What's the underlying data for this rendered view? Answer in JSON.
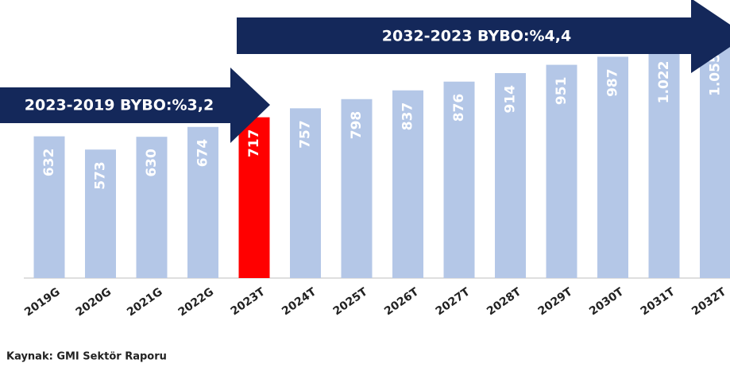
{
  "chart_data": {
    "type": "bar",
    "categories": [
      "2019G",
      "2020G",
      "2021G",
      "2022G",
      "2023T",
      "2024T",
      "2025T",
      "2026T",
      "2027T",
      "2028T",
      "2029T",
      "2030T",
      "2031T",
      "2032T"
    ],
    "values": [
      632,
      573,
      630,
      674,
      717,
      757,
      798,
      837,
      876,
      914,
      951,
      987,
      1022,
      1055
    ],
    "value_labels": [
      "632",
      "573",
      "630",
      "674",
      "717",
      "757",
      "798",
      "837",
      "876",
      "914",
      "951",
      "987",
      "1.022",
      "1.055"
    ],
    "colors": [
      "#b4c7e7",
      "#b4c7e7",
      "#b4c7e7",
      "#b4c7e7",
      "#ff0000",
      "#b4c7e7",
      "#b4c7e7",
      "#b4c7e7",
      "#b4c7e7",
      "#b4c7e7",
      "#b4c7e7",
      "#b4c7e7",
      "#b4c7e7",
      "#b4c7e7"
    ],
    "ylim": [
      0,
      1240
    ],
    "annotations": [
      "2023-2019 BYBO:%3,2",
      "2032-2023 BYBO:%4,4"
    ],
    "source": "Kaynak: GMI Sektör Raporu"
  }
}
